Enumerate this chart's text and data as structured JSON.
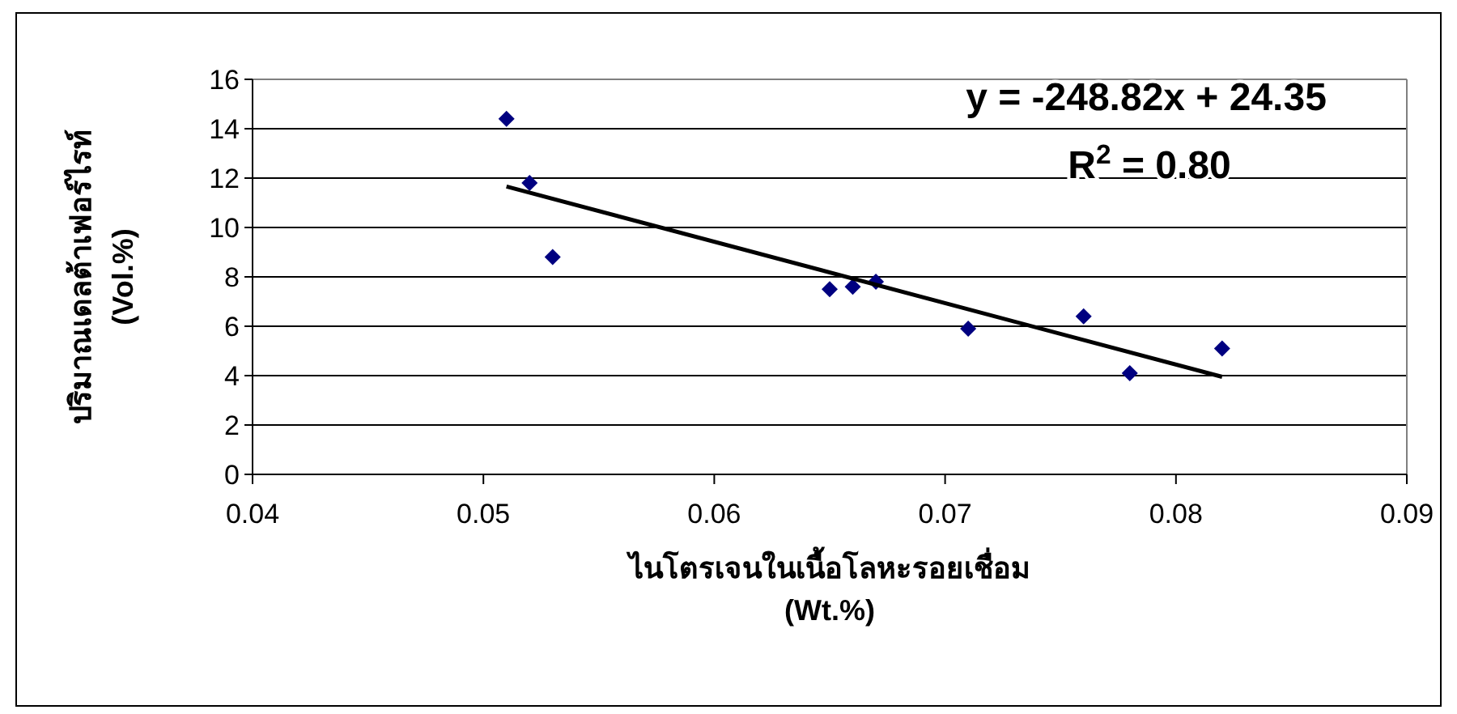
{
  "chart_data": {
    "type": "scatter",
    "xlabel": "ไนโตรเจนในเนื้อโลหะรอยเชื่อม\n(Wt.%)",
    "ylabel": "ปริมาณเดลต้าเฟอร์ไรท์\n(Vol.%)",
    "x": [
      0.051,
      0.052,
      0.053,
      0.065,
      0.066,
      0.067,
      0.071,
      0.076,
      0.078,
      0.082
    ],
    "series": [
      {
        "color": "#000080",
        "marker": "diamond",
        "values": [
          14.4,
          11.8,
          8.8,
          7.5,
          7.6,
          7.8,
          5.9,
          6.4,
          4.1,
          5.1
        ]
      },
      {
        "type": "line",
        "color": "#000000",
        "line_style": "solid",
        "x": [
          0.051,
          0.082
        ],
        "values": [
          11.66,
          3.95
        ]
      }
    ],
    "annotations": [
      "y = -248.82x + 24.35",
      "R$^{2}$ = 0.80"
    ],
    "xlim": [
      0.04,
      0.09
    ],
    "xticks": [
      0.04,
      0.05,
      0.06,
      0.07,
      0.08,
      0.09
    ],
    "ylim": [
      0,
      16
    ],
    "yticks": [
      0,
      2,
      4,
      6,
      8,
      10,
      12,
      14,
      16
    ],
    "grid": "y"
  }
}
